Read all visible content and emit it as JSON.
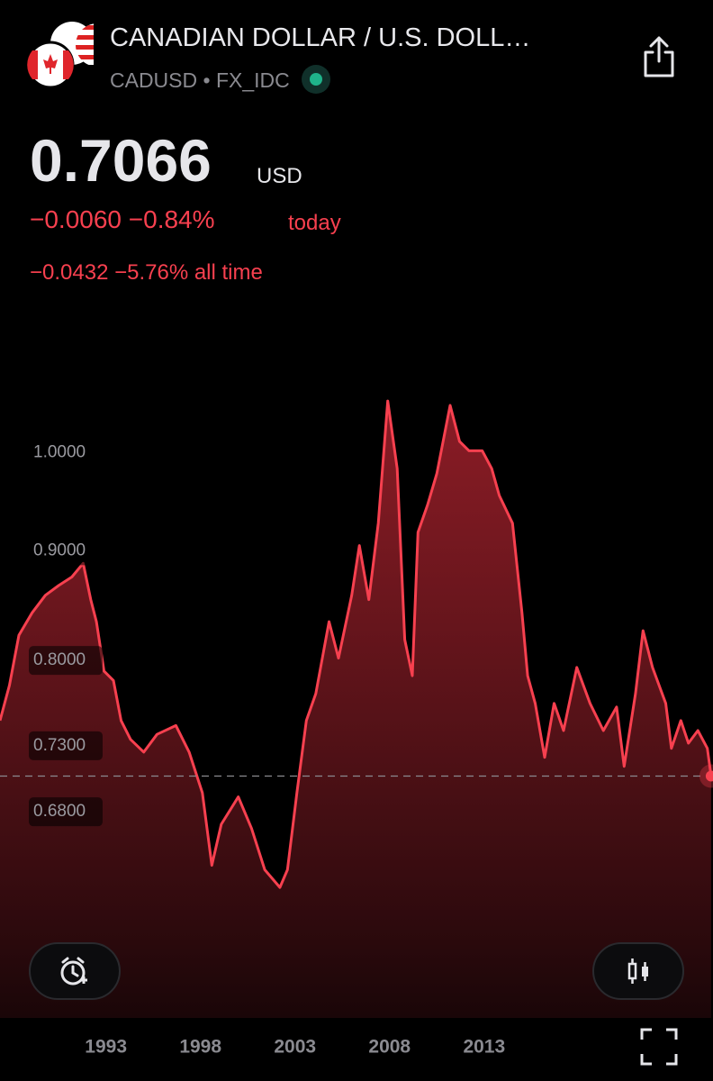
{
  "header": {
    "title": "CANADIAN DOLLAR / U.S. DOLL…",
    "symbol": "CADUSD",
    "exchange": "FX_IDC",
    "price": "0.7066",
    "currency": "USD",
    "change": "−0.0060 −0.84%",
    "change_period": "today",
    "all_time_change": "−0.0432 −5.76% all time"
  },
  "chart_data": {
    "type": "line",
    "log_scale": true,
    "grid": false,
    "color": "#f7404f",
    "x": [
      1987.4,
      1987.9,
      1988.4,
      1989.1,
      1989.8,
      1990.5,
      1991.2,
      1991.8,
      1992.2,
      1992.5,
      1992.9,
      1993.4,
      1993.8,
      1994.3,
      1995.0,
      1995.7,
      1996.7,
      1997.4,
      1998.1,
      1998.6,
      1999.1,
      2000.0,
      2000.7,
      2001.4,
      2002.2,
      2002.6,
      2003.1,
      2003.6,
      2004.1,
      2004.8,
      2005.3,
      2006.0,
      2006.4,
      2006.9,
      2007.4,
      2007.9,
      2008.4,
      2008.8,
      2009.2,
      2009.5,
      2010.0,
      2010.5,
      2011.2,
      2011.7,
      2012.2,
      2012.9,
      2013.4,
      2013.8,
      2014.5,
      2015.0,
      2015.3,
      2015.7,
      2016.2,
      2016.7,
      2017.2,
      2017.9,
      2018.6,
      2019.3,
      2020.0,
      2020.4,
      2021.0,
      2021.4,
      2021.9,
      2022.6,
      2022.9,
      2023.4,
      2023.8,
      2024.3,
      2024.8,
      2025.0
    ],
    "values": [
      0.75,
      0.779,
      0.822,
      0.842,
      0.858,
      0.867,
      0.875,
      0.888,
      0.854,
      0.834,
      0.791,
      0.783,
      0.75,
      0.735,
      0.725,
      0.739,
      0.746,
      0.725,
      0.694,
      0.642,
      0.671,
      0.691,
      0.668,
      0.639,
      0.627,
      0.639,
      0.694,
      0.75,
      0.772,
      0.834,
      0.802,
      0.858,
      0.905,
      0.854,
      0.927,
      1.057,
      0.983,
      0.818,
      0.787,
      0.918,
      0.945,
      0.978,
      1.052,
      1.012,
      1.002,
      1.002,
      0.983,
      0.955,
      0.927,
      0.842,
      0.787,
      0.764,
      0.721,
      0.764,
      0.742,
      0.794,
      0.764,
      0.742,
      0.761,
      0.714,
      0.772,
      0.826,
      0.794,
      0.764,
      0.728,
      0.75,
      0.732,
      0.742,
      0.728,
      0.7066
    ],
    "xlim": [
      1987.4,
      2025.1
    ],
    "ylim": [
      0.545,
      1.083
    ],
    "xticks": [
      1993,
      1998,
      2003,
      2008,
      2013
    ],
    "yticks": [
      {
        "value": 0.68,
        "label": "0.6800"
      },
      {
        "value": 0.73,
        "label": "0.7300"
      },
      {
        "value": 0.8,
        "label": "0.8000"
      },
      {
        "value": 0.9,
        "label": "0.9000"
      },
      {
        "value": 1.0,
        "label": "1.0000"
      }
    ]
  }
}
